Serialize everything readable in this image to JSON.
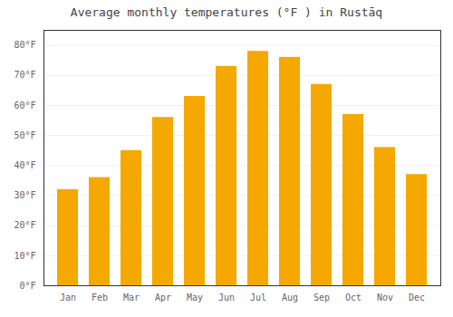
{
  "chart_data": {
    "type": "bar",
    "title": "Average monthly temperatures (°F ) in Rustāq",
    "categories": [
      "Jan",
      "Feb",
      "Mar",
      "Apr",
      "May",
      "Jun",
      "Jul",
      "Aug",
      "Sep",
      "Oct",
      "Nov",
      "Dec"
    ],
    "values": [
      32,
      36,
      45,
      56,
      63,
      73,
      78,
      76,
      67,
      57,
      46,
      37
    ],
    "color": "#F5A800",
    "ylim": [
      0,
      85
    ],
    "yticks": [
      {
        "value": 0,
        "label": "0°F"
      },
      {
        "value": 10,
        "label": "10°F"
      },
      {
        "value": 20,
        "label": "20°F"
      },
      {
        "value": 30,
        "label": "30°F"
      },
      {
        "value": 40,
        "label": "40°F"
      },
      {
        "value": 50,
        "label": "50°F"
      },
      {
        "value": 60,
        "label": "60°F"
      },
      {
        "value": 70,
        "label": "70°F"
      },
      {
        "value": 80,
        "label": "80°F"
      }
    ],
    "grid": true
  }
}
